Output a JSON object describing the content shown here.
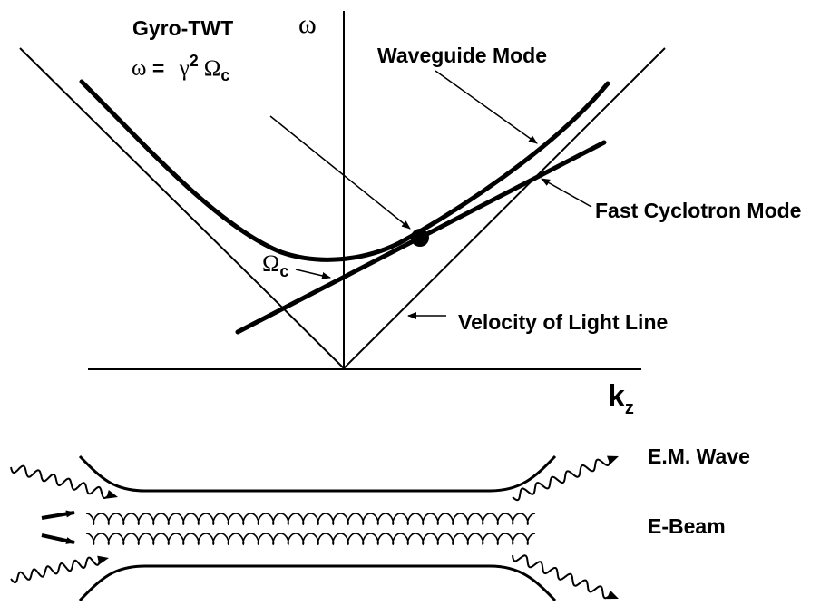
{
  "diagram": {
    "title": "Gyro-TWT",
    "omega_axis": "ω",
    "kz_axis": {
      "main": "k",
      "sub": "z"
    },
    "operating_point": {
      "lhs": "ω",
      "eq": " = ",
      "gamma": "γ",
      "sup": "2",
      "omega_c": "Ω",
      "sub": "c"
    },
    "cutoff": {
      "main": "Ω",
      "sub": "c"
    },
    "curves": {
      "waveguide_mode": "Waveguide Mode",
      "fast_cyclotron_mode": "Fast Cyclotron Mode",
      "light_line": "Velocity of Light Line"
    },
    "schematic": {
      "em_wave": "E.M. Wave",
      "e_beam": "E-Beam"
    }
  }
}
